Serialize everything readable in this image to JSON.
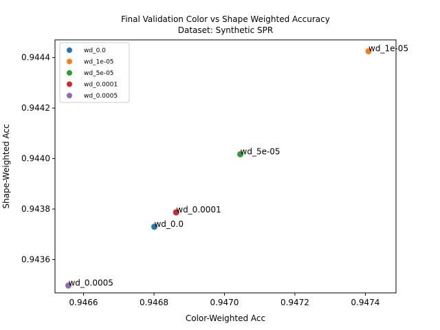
{
  "chart_data": {
    "type": "scatter",
    "title": "Final Validation Color vs Shape Weighted Accuracy",
    "subtitle": "Dataset: Synthetic SPR",
    "xlabel": "Color-Weighted Acc",
    "ylabel": "Shape-Weighted Acc",
    "xlim": [
      0.946519,
      0.947487
    ],
    "ylim": [
      0.943468,
      0.94447
    ],
    "xticks": [
      0.9466,
      0.9468,
      0.947,
      0.9472,
      0.9474
    ],
    "xtick_labels": [
      "0.9466",
      "0.9468",
      "0.9470",
      "0.9472",
      "0.9474"
    ],
    "yticks": [
      0.9436,
      0.9438,
      0.944,
      0.9442,
      0.9444
    ],
    "ytick_labels": [
      "0.9436",
      "0.9438",
      "0.9440",
      "0.9442",
      "0.9444"
    ],
    "legend_position": "top-left",
    "grid": false,
    "series": [
      {
        "name": "wd_0.0",
        "color": "#1f77b4",
        "x": 0.946801,
        "y": 0.94373,
        "label": "wd_0.0"
      },
      {
        "name": "wd_1e-05",
        "color": "#ff7f0e",
        "x": 0.947409,
        "y": 0.944425,
        "label": "wd_1e-05"
      },
      {
        "name": "wd_5e-05",
        "color": "#2ca02c",
        "x": 0.947045,
        "y": 0.944017,
        "label": "wd_5e-05"
      },
      {
        "name": "wd_0.0001",
        "color": "#d62728",
        "x": 0.946863,
        "y": 0.943787,
        "label": "wd_0.0001"
      },
      {
        "name": "wd_0.0005",
        "color": "#9467bd",
        "x": 0.946557,
        "y": 0.943497,
        "label": "wd_0.0005"
      }
    ]
  }
}
